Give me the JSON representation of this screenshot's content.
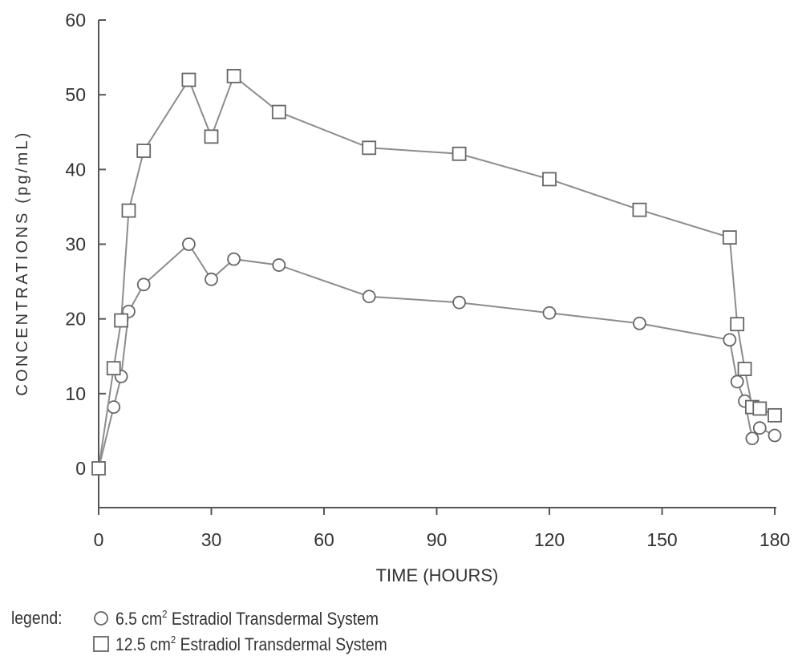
{
  "colors": {
    "axis": "#555555",
    "series_line": "#8c8c8c",
    "marker_stroke": "#666666",
    "text": "#333333"
  },
  "chart_data": {
    "type": "line",
    "xlabel": "TIME (HOURS)",
    "ylabel": "CONCENTRATIONS (pg/mL)",
    "xlim": [
      0,
      180
    ],
    "ylim": [
      -5,
      60
    ],
    "xticks": [
      0,
      30,
      60,
      90,
      120,
      150,
      180
    ],
    "yticks": [
      0,
      10,
      20,
      30,
      40,
      50,
      60
    ],
    "grid": false,
    "legend_position": "bottom-left",
    "legend": {
      "label": "legend:",
      "entries": [
        {
          "marker": "circle",
          "size": "6.5 cm",
          "sup": "2",
          "text": " Estradiol Transdermal System"
        },
        {
          "marker": "square",
          "size": "12.5 cm",
          "sup": "2",
          "text": " Estradiol Transdermal System"
        }
      ]
    },
    "series": [
      {
        "name": "6.5 cm2 Estradiol Transdermal System",
        "marker": "circle",
        "x": [
          0,
          4,
          6,
          8,
          12,
          24,
          30,
          36,
          48,
          72,
          96,
          120,
          144,
          168,
          170,
          172,
          174,
          176,
          180
        ],
        "y": [
          0,
          8.2,
          12.3,
          21,
          24.6,
          30,
          25.3,
          28,
          27.2,
          23,
          22.2,
          20.8,
          19.4,
          17.2,
          11.6,
          9,
          4,
          5.4,
          4.4
        ]
      },
      {
        "name": "12.5 cm2 Estradiol Transdermal System",
        "marker": "square",
        "x": [
          0,
          4,
          6,
          8,
          12,
          24,
          30,
          36,
          48,
          72,
          96,
          120,
          144,
          168,
          170,
          172,
          174,
          176,
          180
        ],
        "y": [
          0,
          13.4,
          19.8,
          34.5,
          42.5,
          52,
          44.4,
          52.5,
          47.7,
          42.9,
          42.1,
          38.7,
          34.6,
          30.9,
          19.3,
          13.3,
          8.2,
          8,
          7.1
        ]
      }
    ]
  }
}
